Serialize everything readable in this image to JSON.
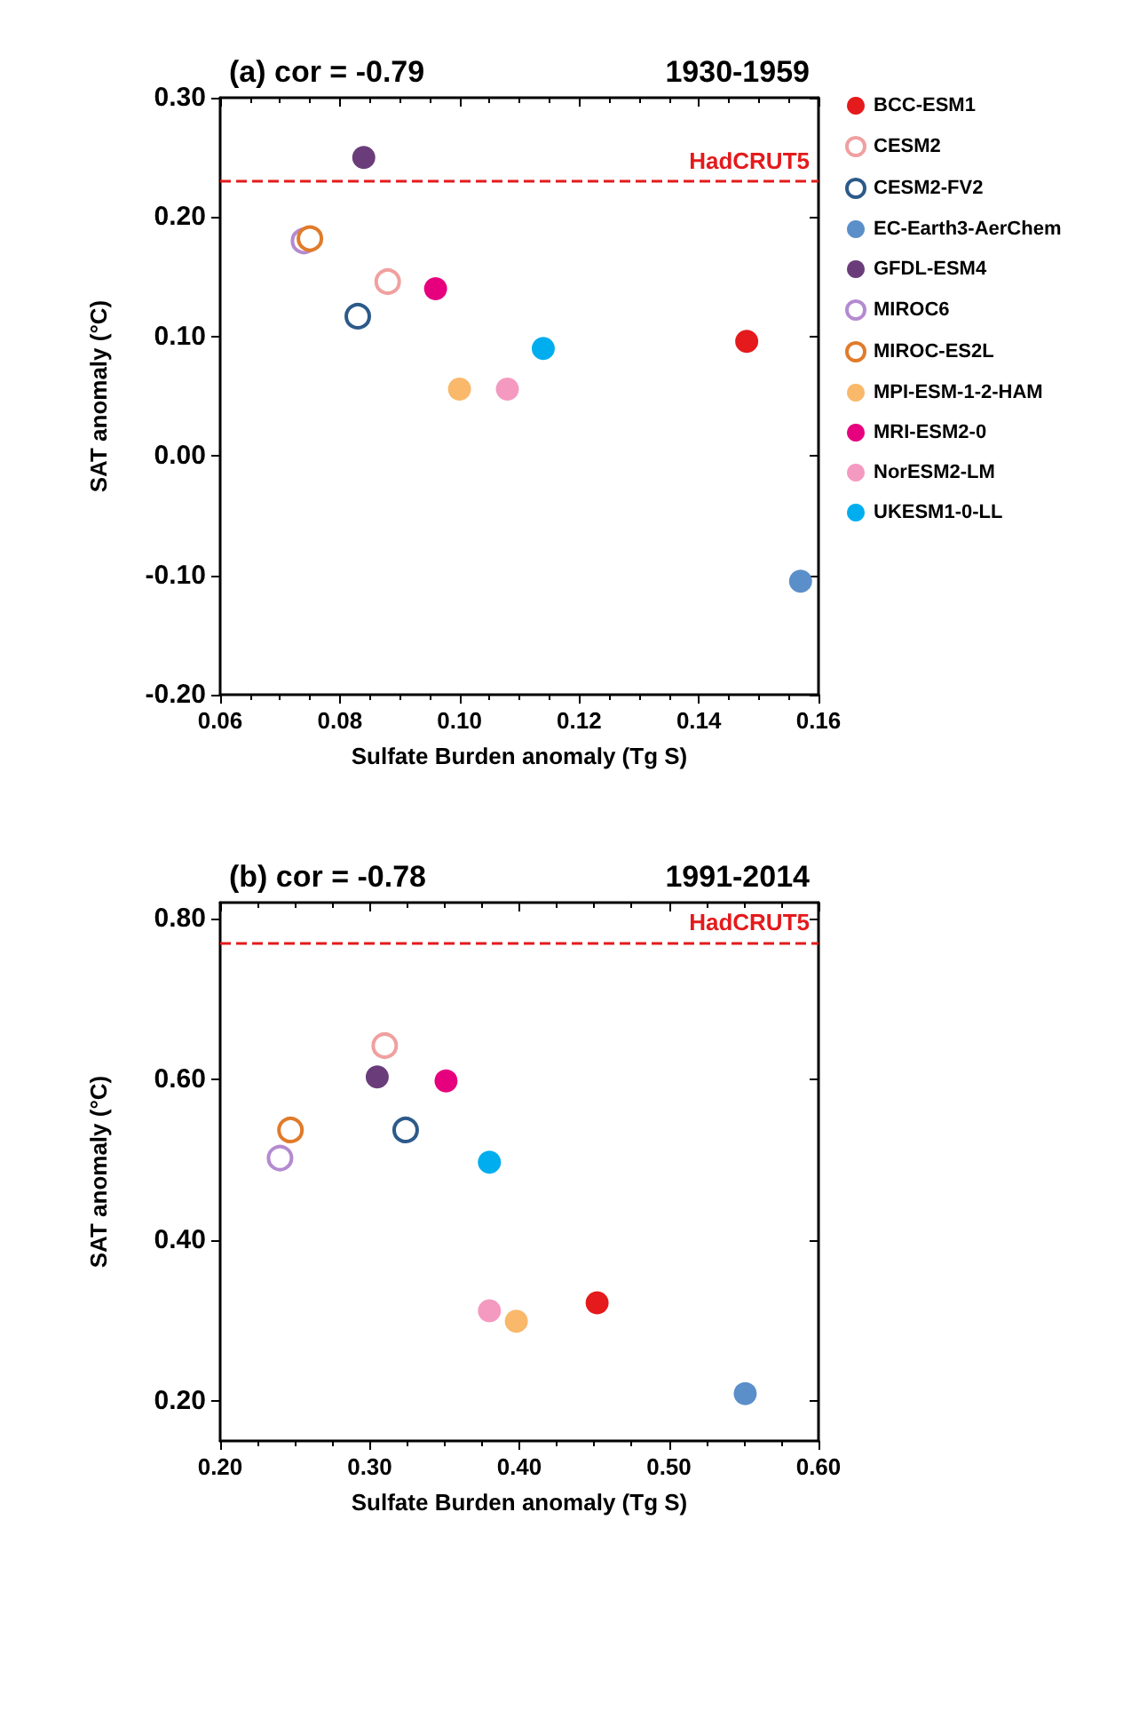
{
  "chart_data": [
    {
      "type": "scatter",
      "title": "(a) cor = -0.79",
      "subtitle": "1930-1959",
      "xlabel": "Sulfate Burden anomaly (Tg S)",
      "ylabel": "SAT anomaly (°C)",
      "xlim": [
        0.06,
        0.16
      ],
      "xticks": [
        {
          "value": 0.06,
          "label": "0.06"
        },
        {
          "value": 0.08,
          "label": "0.08"
        },
        {
          "value": 0.1,
          "label": "0.10"
        },
        {
          "value": 0.12,
          "label": "0.12"
        },
        {
          "value": 0.14,
          "label": "0.14"
        },
        {
          "value": 0.16,
          "label": "0.16"
        }
      ],
      "ylim": [
        -0.2,
        0.3
      ],
      "yticks": [
        {
          "value": -0.2,
          "label": "-0.20"
        },
        {
          "value": -0.1,
          "label": "-0.10"
        },
        {
          "value": 0,
          "label": "0.00"
        },
        {
          "value": 0.1,
          "label": "0.10"
        },
        {
          "value": 0.2,
          "label": "0.20"
        },
        {
          "value": 0.3,
          "label": "0.30"
        }
      ],
      "grid": false,
      "legend": "right",
      "marker": "circle",
      "ref_lines": [
        {
          "axis": "y",
          "value": 0.23,
          "label": "HadCRUT5",
          "color": "#e41a1c",
          "line_style": "dashed"
        }
      ],
      "series": [
        {
          "name": "BCC-ESM1",
          "color": "#e41a1c",
          "x": [
            0.148
          ],
          "values": [
            0.096
          ]
        },
        {
          "name": "CESM2",
          "color": "#f0a0a0",
          "marker": "open circle",
          "x": [
            0.088
          ],
          "values": [
            0.146
          ]
        },
        {
          "name": "CESM2-FV2",
          "color": "#2c5a8a",
          "marker": "open circle",
          "x": [
            0.083
          ],
          "values": [
            0.117
          ]
        },
        {
          "name": "EC-Earth3-AerChem",
          "color": "#5b8fc9",
          "x": [
            0.157
          ],
          "values": [
            -0.105
          ]
        },
        {
          "name": "GFDL-ESM4",
          "color": "#6a3d7a",
          "x": [
            0.084
          ],
          "values": [
            0.25
          ]
        },
        {
          "name": "MIROC6",
          "color": "#b48ad0",
          "marker": "open circle",
          "x": [
            0.074
          ],
          "values": [
            0.18
          ]
        },
        {
          "name": "MIROC-ES2L",
          "color": "#e07b2a",
          "marker": "open circle",
          "x": [
            0.075
          ],
          "values": [
            0.182
          ]
        },
        {
          "name": "MPI-ESM-1-2-HAM",
          "color": "#f9b86a",
          "x": [
            0.1
          ],
          "values": [
            0.056
          ]
        },
        {
          "name": "MRI-ESM2-0",
          "color": "#e6007e",
          "x": [
            0.096
          ],
          "values": [
            0.14
          ]
        },
        {
          "name": "NorESM2-LM",
          "color": "#f49ac1",
          "x": [
            0.108
          ],
          "values": [
            0.056
          ]
        },
        {
          "name": "UKESM1-0-LL",
          "color": "#00aeef",
          "x": [
            0.114
          ],
          "values": [
            0.09
          ]
        }
      ]
    },
    {
      "type": "scatter",
      "title": "(b) cor = -0.78",
      "subtitle": "1991-2014",
      "xlabel": "Sulfate Burden anomaly (Tg S)",
      "ylabel": "SAT anomaly (°C)",
      "xlim": [
        0.2,
        0.6
      ],
      "xticks": [
        {
          "value": 0.2,
          "label": "0.20"
        },
        {
          "value": 0.3,
          "label": "0.30"
        },
        {
          "value": 0.4,
          "label": "0.40"
        },
        {
          "value": 0.5,
          "label": "0.50"
        },
        {
          "value": 0.6,
          "label": "0.60"
        }
      ],
      "ylim": [
        0.15,
        0.82
      ],
      "yticks": [
        {
          "value": 0.2,
          "label": "0.20"
        },
        {
          "value": 0.4,
          "label": "0.40"
        },
        {
          "value": 0.6,
          "label": "0.60"
        },
        {
          "value": 0.8,
          "label": "0.80"
        }
      ],
      "grid": false,
      "marker": "circle",
      "ref_lines": [
        {
          "axis": "y",
          "value": 0.768,
          "label": "HadCRUT5",
          "color": "#e41a1c",
          "line_style": "dashed"
        }
      ],
      "series": [
        {
          "color": "#e41a1c",
          "x": [
            0.452
          ],
          "values": [
            0.322
          ]
        },
        {
          "color": "#f0a0a0",
          "marker": "open circle",
          "x": [
            0.31
          ],
          "values": [
            0.642
          ]
        },
        {
          "color": "#2c5a8a",
          "marker": "open circle",
          "x": [
            0.324
          ],
          "values": [
            0.537
          ]
        },
        {
          "color": "#5b8fc9",
          "x": [
            0.551
          ],
          "values": [
            0.209
          ]
        },
        {
          "color": "#6a3d7a",
          "x": [
            0.305
          ],
          "values": [
            0.603
          ]
        },
        {
          "color": "#b48ad0",
          "marker": "open circle",
          "x": [
            0.24
          ],
          "values": [
            0.502
          ]
        },
        {
          "color": "#e07b2a",
          "marker": "open circle",
          "x": [
            0.247
          ],
          "values": [
            0.537
          ]
        },
        {
          "color": "#f9b86a",
          "x": [
            0.398
          ],
          "values": [
            0.299
          ]
        },
        {
          "color": "#e6007e",
          "x": [
            0.351
          ],
          "values": [
            0.598
          ]
        },
        {
          "color": "#f49ac1",
          "x": [
            0.38
          ],
          "values": [
            0.312
          ]
        },
        {
          "color": "#00aeef",
          "x": [
            0.38
          ],
          "values": [
            0.497
          ]
        }
      ]
    }
  ]
}
